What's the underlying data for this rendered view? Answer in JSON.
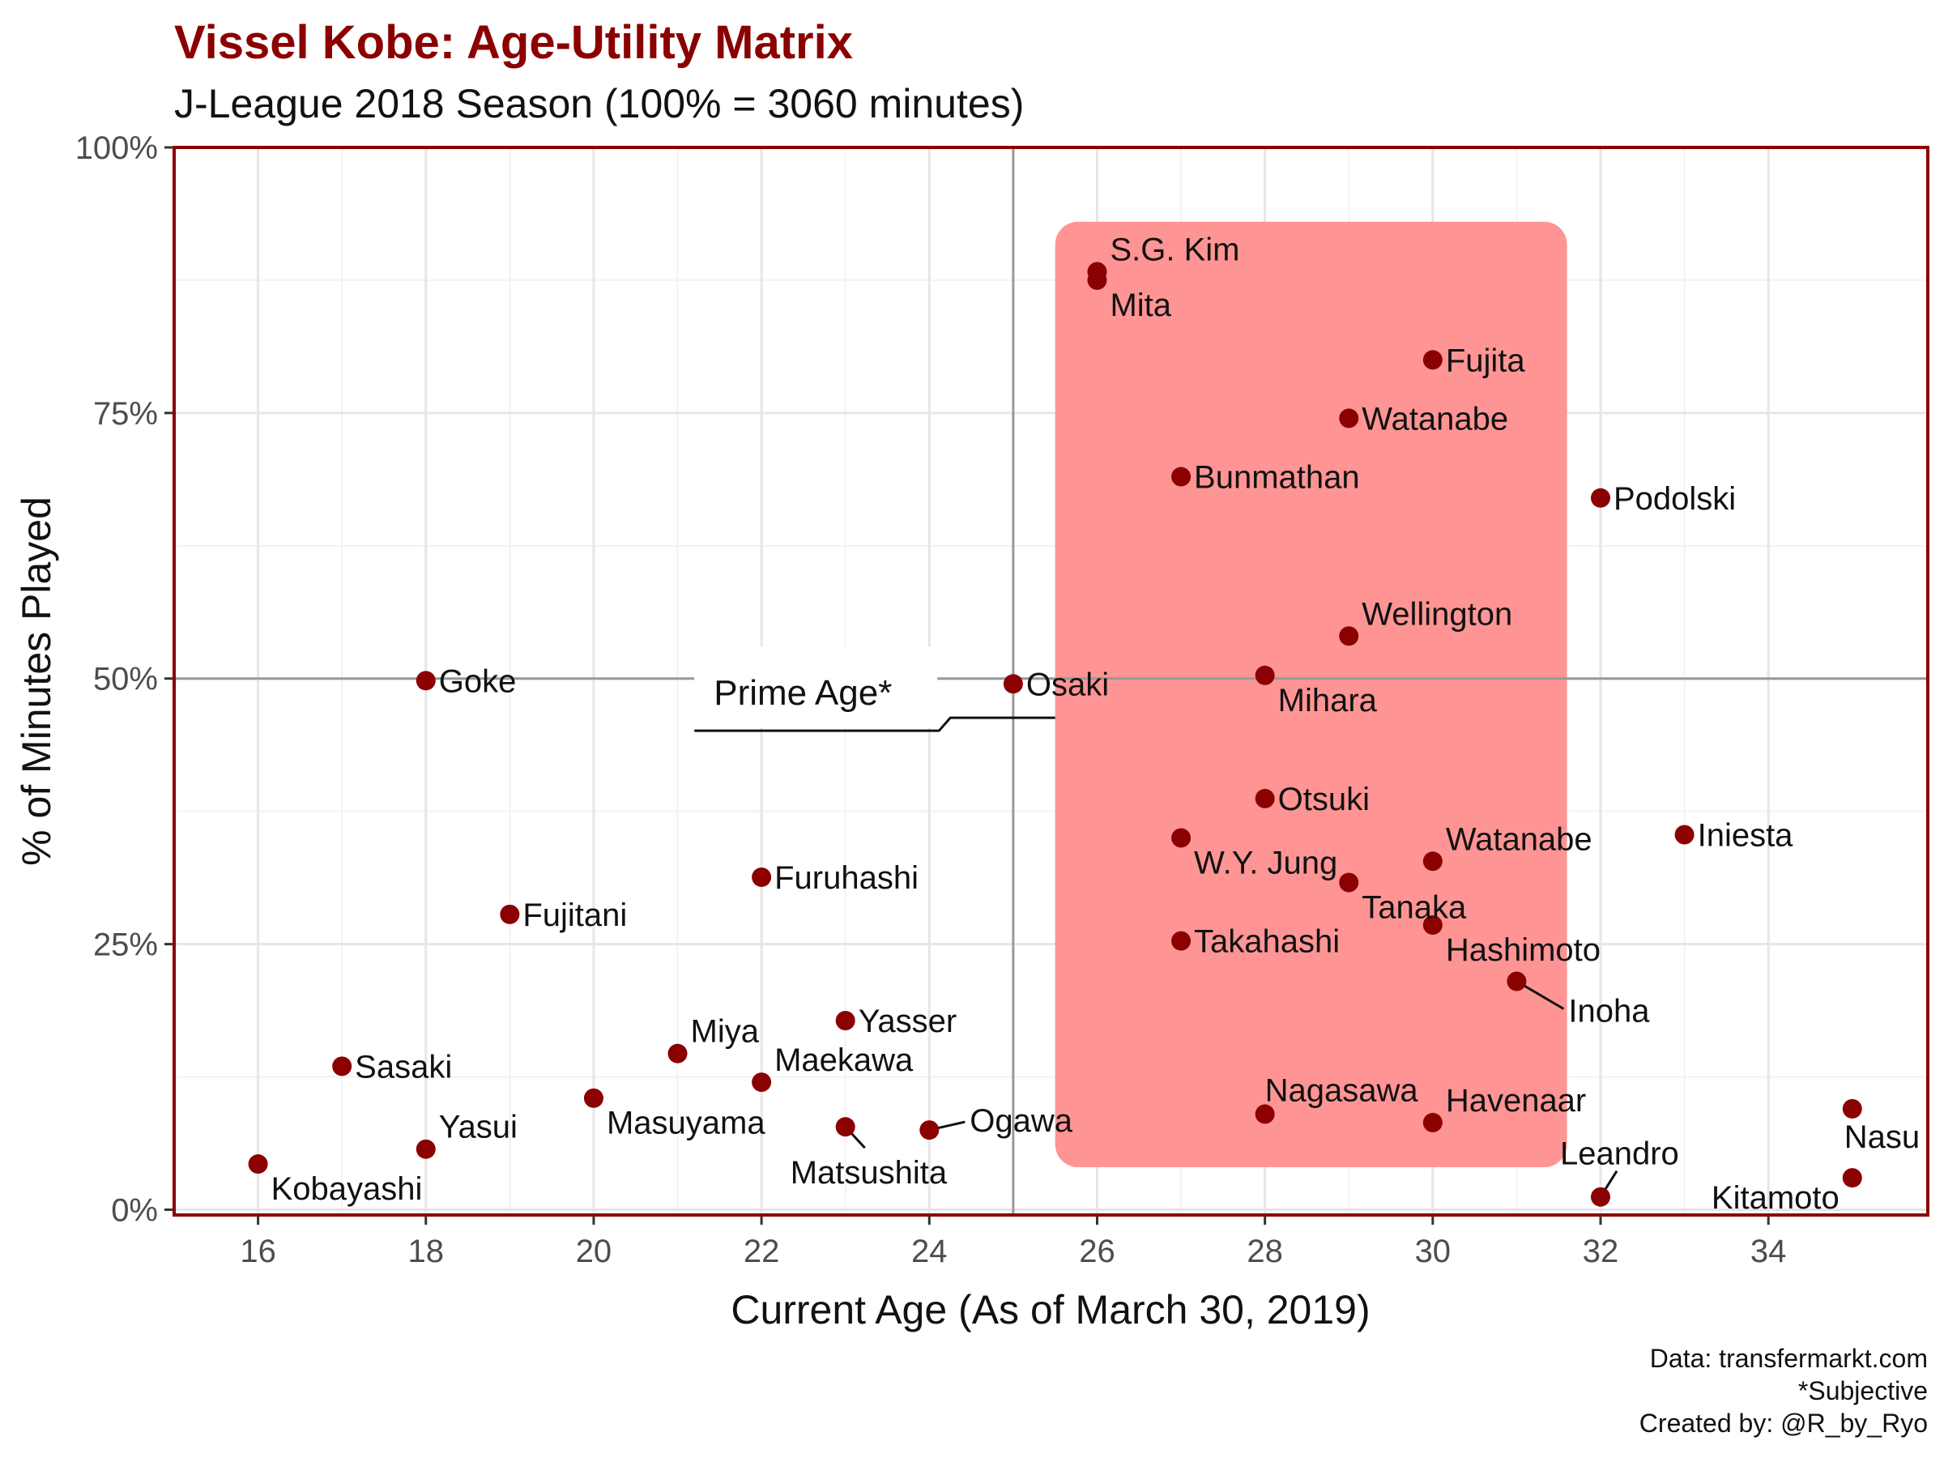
{
  "title": "Vissel Kobe: Age-Utility Matrix",
  "subtitle": "J-League 2018 Season (100% = 3060 minutes)",
  "caption": [
    "Data: transfermarkt.com",
    "*Subjective",
    "Created by: @R_by_Ryo"
  ],
  "colors": {
    "accent": "#8b0000",
    "point": "#8b0000",
    "prime_rect": "#ff9494",
    "panel_border": "#8b0000",
    "grid_major": "#e6e6e6",
    "grid_minor": "#f2f2f2",
    "reference_line": "#999999"
  },
  "chart_data": {
    "type": "scatter",
    "xlabel": "Current Age (As of March 30, 2019)",
    "ylabel": "% of Minutes Played",
    "xlim": [
      15,
      35.9
    ],
    "ylim": [
      -0.005,
      1.0
    ],
    "x_ticks": [
      16,
      18,
      20,
      22,
      24,
      26,
      28,
      30,
      32,
      34
    ],
    "x_tick_labels": [
      "16",
      "18",
      "20",
      "22",
      "24",
      "26",
      "28",
      "30",
      "32",
      "34"
    ],
    "y_ticks": [
      0,
      0.25,
      0.5,
      0.75,
      1.0
    ],
    "y_tick_labels": [
      "0%",
      "25%",
      "50%",
      "75%",
      "100%"
    ],
    "grid": true,
    "reference_lines": {
      "x": 25,
      "y": 0.5
    },
    "prime_age_region": {
      "x": [
        25.5,
        31.6
      ],
      "y": [
        0.04,
        0.93
      ]
    },
    "annotation": {
      "text": "Prime Age*",
      "at": [
        21.2,
        0.46
      ],
      "points_to": [
        25.5,
        0.46
      ]
    },
    "points": [
      {
        "name": "S.G. Kim",
        "age": 26,
        "pct": 0.883,
        "label_pos": "upper-right"
      },
      {
        "name": "Mita",
        "age": 26,
        "pct": 0.875,
        "label_pos": "lower-right"
      },
      {
        "name": "Fujita",
        "age": 30,
        "pct": 0.8,
        "label_pos": "right"
      },
      {
        "name": "Watanabe",
        "age": 29,
        "pct": 0.745,
        "label_pos": "right"
      },
      {
        "name": "Bunmathan",
        "age": 27,
        "pct": 0.69,
        "label_pos": "right"
      },
      {
        "name": "Podolski",
        "age": 32,
        "pct": 0.67,
        "label_pos": "right"
      },
      {
        "name": "Wellington",
        "age": 29,
        "pct": 0.54,
        "label_pos": "upper-right"
      },
      {
        "name": "Mihara",
        "age": 28,
        "pct": 0.503,
        "label_pos": "lower-right"
      },
      {
        "name": "Goke",
        "age": 18,
        "pct": 0.498,
        "label_pos": "right"
      },
      {
        "name": "Osaki",
        "age": 25,
        "pct": 0.495,
        "label_pos": "right"
      },
      {
        "name": "Otsuki",
        "age": 28,
        "pct": 0.387,
        "label_pos": "right"
      },
      {
        "name": "Iniesta",
        "age": 33,
        "pct": 0.353,
        "label_pos": "right"
      },
      {
        "name": "W.Y. Jung",
        "age": 27,
        "pct": 0.35,
        "label_pos": "lower-right"
      },
      {
        "name": "Watanabe",
        "age": 30,
        "pct": 0.328,
        "label_pos": "upper-right"
      },
      {
        "name": "Furuhashi",
        "age": 22,
        "pct": 0.313,
        "label_pos": "right"
      },
      {
        "name": "Tanaka",
        "age": 29,
        "pct": 0.308,
        "label_pos": "lower-right"
      },
      {
        "name": "Fujitani",
        "age": 19,
        "pct": 0.278,
        "label_pos": "right"
      },
      {
        "name": "Hashimoto",
        "age": 30,
        "pct": 0.268,
        "label_pos": "lower-right"
      },
      {
        "name": "Takahashi",
        "age": 27,
        "pct": 0.253,
        "label_pos": "right"
      },
      {
        "name": "Inoha",
        "age": 31,
        "pct": 0.215,
        "label_pos": "lower-right-far"
      },
      {
        "name": "Yasser",
        "age": 23,
        "pct": 0.178,
        "label_pos": "right"
      },
      {
        "name": "Miya",
        "age": 21,
        "pct": 0.147,
        "label_pos": "upper-right"
      },
      {
        "name": "Sasaki",
        "age": 17,
        "pct": 0.135,
        "label_pos": "right"
      },
      {
        "name": "Maekawa",
        "age": 22,
        "pct": 0.12,
        "label_pos": "upper-right"
      },
      {
        "name": "Masuyama",
        "age": 20,
        "pct": 0.105,
        "label_pos": "lower-right"
      },
      {
        "name": "Nasu",
        "age": 35,
        "pct": 0.095,
        "label_pos": "below"
      },
      {
        "name": "Nagasawa",
        "age": 28,
        "pct": 0.09,
        "label_pos": "above"
      },
      {
        "name": "Havenaar",
        "age": 30,
        "pct": 0.082,
        "label_pos": "upper-right"
      },
      {
        "name": "Matsushita",
        "age": 23,
        "pct": 0.078,
        "label_pos": "lower-far"
      },
      {
        "name": "Ogawa",
        "age": 24,
        "pct": 0.075,
        "label_pos": "right-far"
      },
      {
        "name": "Yasui",
        "age": 18,
        "pct": 0.057,
        "label_pos": "upper-right"
      },
      {
        "name": "Kobayashi",
        "age": 16,
        "pct": 0.043,
        "label_pos": "lower-right"
      },
      {
        "name": "Kitamoto",
        "age": 35,
        "pct": 0.03,
        "label_pos": "lower-left"
      },
      {
        "name": "Leandro",
        "age": 32,
        "pct": 0.012,
        "label_pos": "above-far"
      }
    ]
  }
}
